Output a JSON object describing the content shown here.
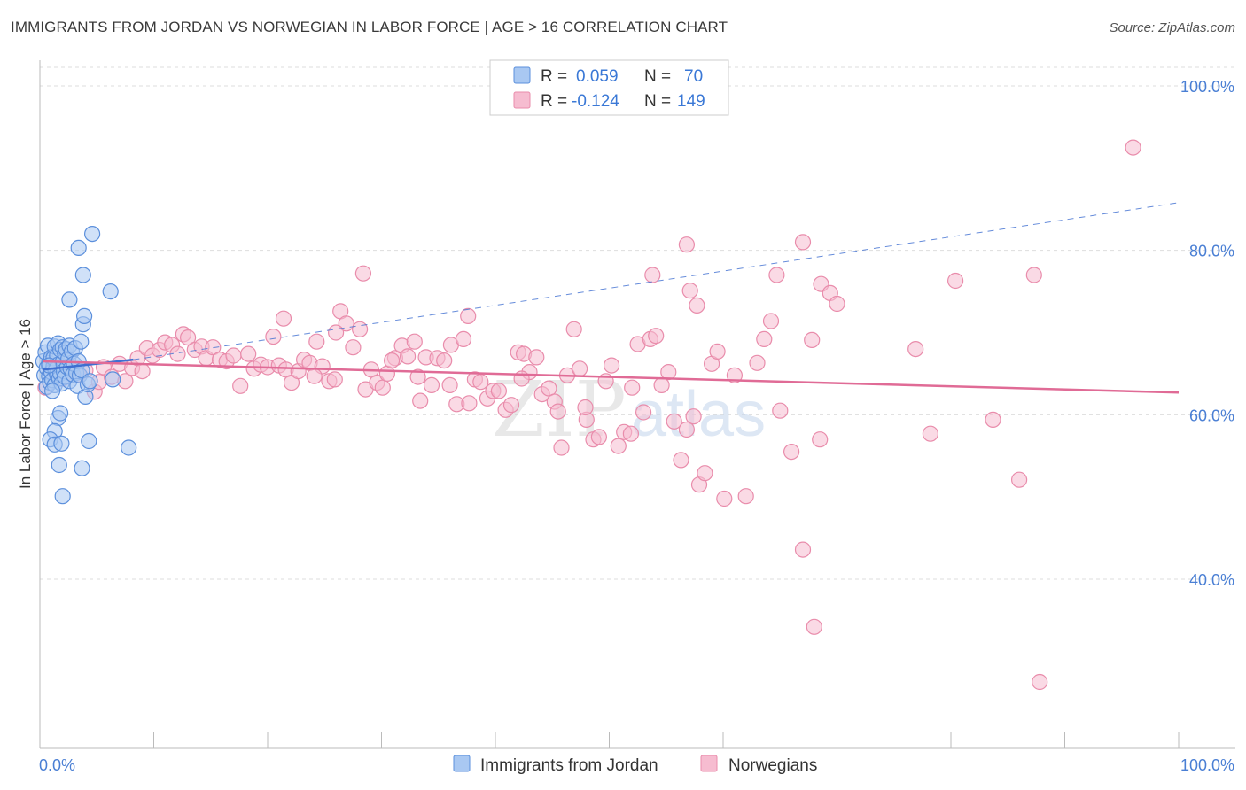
{
  "title": "IMMIGRANTS FROM JORDAN VS NORWEGIAN IN LABOR FORCE | AGE > 16 CORRELATION CHART",
  "source": "Source: ZipAtlas.com",
  "watermark": {
    "zip": "ZIP",
    "atlas": "atlas"
  },
  "colors": {
    "blue_fill": "#a9c8f2",
    "blue_stroke": "#5b8fdc",
    "blue_line": "#3f6fd1",
    "pink_fill": "#f6bcd0",
    "pink_stroke": "#e98cab",
    "pink_line": "#e06b96",
    "grid": "#dddddd",
    "tick_text": "#4a7fd4"
  },
  "legend": {
    "rows": [
      {
        "r_label": "R =",
        "r_value": "0.059",
        "n_label": "N =",
        "n_value": "70",
        "series": "blue"
      },
      {
        "r_label": "R =",
        "r_value": "-0.124",
        "n_label": "N =",
        "n_value": "149",
        "series": "pink"
      }
    ]
  },
  "bottom_legend": [
    "Immigrants from Jordan",
    "Norwegians"
  ],
  "chart_data": {
    "type": "scatter",
    "title": "IMMIGRANTS FROM JORDAN VS NORWEGIAN IN LABOR FORCE | AGE > 16 CORRELATION CHART",
    "xlabel": "",
    "ylabel": "In Labor Force | Age > 16",
    "xlim": [
      0,
      100
    ],
    "ylim": [
      20,
      103
    ],
    "x_tick_labels": [
      {
        "value": 0,
        "label": "0.0%"
      },
      {
        "value": 100,
        "label": "100.0%"
      }
    ],
    "x_minor_ticks": [
      10,
      20,
      30,
      40,
      50,
      60,
      70,
      80,
      90
    ],
    "y_ticks": [
      {
        "value": 40,
        "label": "40.0%"
      },
      {
        "value": 60,
        "label": "60.0%"
      },
      {
        "value": 80,
        "label": "80.0%"
      },
      {
        "value": 100,
        "label": "100.0%"
      }
    ],
    "grid": true,
    "legend_position": "top-center",
    "series": [
      {
        "name": "Immigrants from Jordan",
        "color": "blue",
        "R": 0.059,
        "N": 70,
        "trend_solid": [
          [
            0.3,
            65.5
          ],
          [
            8.2,
            66.7
          ]
        ],
        "trend_dashed": [
          [
            8.2,
            66.7
          ],
          [
            100,
            85.8
          ]
        ],
        "points": [
          [
            0.3,
            66.5
          ],
          [
            0.4,
            64.8
          ],
          [
            0.5,
            67.6
          ],
          [
            0.6,
            65.7
          ],
          [
            0.6,
            63.4
          ],
          [
            0.7,
            68.4
          ],
          [
            0.8,
            64.7
          ],
          [
            0.8,
            66.3
          ],
          [
            0.9,
            63.9
          ],
          [
            1.0,
            65.2
          ],
          [
            1.0,
            67.0
          ],
          [
            1.1,
            64.2
          ],
          [
            1.2,
            65.9
          ],
          [
            1.2,
            66.9
          ],
          [
            1.3,
            68.3
          ],
          [
            1.3,
            63.6
          ],
          [
            1.4,
            65.5
          ],
          [
            1.5,
            64.9
          ],
          [
            1.5,
            67.2
          ],
          [
            1.6,
            66.1
          ],
          [
            1.6,
            68.7
          ],
          [
            1.7,
            64.4
          ],
          [
            1.8,
            65.0
          ],
          [
            1.8,
            67.9
          ],
          [
            1.9,
            63.8
          ],
          [
            2.0,
            66.4
          ],
          [
            2.0,
            68.2
          ],
          [
            2.1,
            65.3
          ],
          [
            2.2,
            64.6
          ],
          [
            2.2,
            67.5
          ],
          [
            2.3,
            68.0
          ],
          [
            2.4,
            65.8
          ],
          [
            2.5,
            66.8
          ],
          [
            2.6,
            64.1
          ],
          [
            2.6,
            68.4
          ],
          [
            2.7,
            65.6
          ],
          [
            2.8,
            67.7
          ],
          [
            2.9,
            64.9
          ],
          [
            3.0,
            66.2
          ],
          [
            3.1,
            68.1
          ],
          [
            3.2,
            65.1
          ],
          [
            3.3,
            63.5
          ],
          [
            3.4,
            66.5
          ],
          [
            3.5,
            64.8
          ],
          [
            3.6,
            68.9
          ],
          [
            3.7,
            65.4
          ],
          [
            3.8,
            71.0
          ],
          [
            3.9,
            72.0
          ],
          [
            4.0,
            62.2
          ],
          [
            4.2,
            63.7
          ],
          [
            4.4,
            64.1
          ],
          [
            2.6,
            74.0
          ],
          [
            3.4,
            80.3
          ],
          [
            3.8,
            77.0
          ],
          [
            4.6,
            82.0
          ],
          [
            6.2,
            75.0
          ],
          [
            1.6,
            59.6
          ],
          [
            1.8,
            60.2
          ],
          [
            1.3,
            58.0
          ],
          [
            0.9,
            57.0
          ],
          [
            1.3,
            56.4
          ],
          [
            1.9,
            56.5
          ],
          [
            4.3,
            56.8
          ],
          [
            7.8,
            56.0
          ],
          [
            1.7,
            53.9
          ],
          [
            3.7,
            53.5
          ],
          [
            2.0,
            50.1
          ],
          [
            6.4,
            64.3
          ],
          [
            1.1,
            62.9
          ],
          [
            0.8,
            66.0
          ]
        ]
      },
      {
        "name": "Norwegians",
        "color": "pink",
        "R": -0.124,
        "N": 149,
        "trend_solid": [
          [
            0.3,
            66.5
          ],
          [
            100,
            62.7
          ]
        ],
        "points": [
          [
            0.5,
            63.3
          ],
          [
            1.5,
            65.1
          ],
          [
            2.0,
            64.4
          ],
          [
            2.8,
            65.6
          ],
          [
            3.4,
            64.9
          ],
          [
            4.0,
            65.4
          ],
          [
            4.8,
            62.8
          ],
          [
            5.2,
            64.0
          ],
          [
            5.6,
            65.8
          ],
          [
            6.3,
            64.6
          ],
          [
            7.0,
            66.2
          ],
          [
            7.5,
            64.1
          ],
          [
            8.1,
            65.7
          ],
          [
            8.6,
            66.9
          ],
          [
            9.0,
            65.3
          ],
          [
            9.4,
            68.1
          ],
          [
            9.9,
            67.2
          ],
          [
            10.5,
            67.9
          ],
          [
            11.0,
            68.8
          ],
          [
            11.6,
            68.5
          ],
          [
            12.1,
            67.4
          ],
          [
            12.6,
            69.8
          ],
          [
            13.0,
            69.4
          ],
          [
            13.6,
            67.9
          ],
          [
            14.2,
            68.3
          ],
          [
            14.6,
            66.9
          ],
          [
            15.2,
            68.2
          ],
          [
            15.8,
            66.7
          ],
          [
            16.4,
            66.5
          ],
          [
            17.0,
            67.2
          ],
          [
            17.6,
            63.5
          ],
          [
            18.3,
            67.4
          ],
          [
            18.8,
            65.6
          ],
          [
            19.4,
            66.1
          ],
          [
            20.0,
            65.8
          ],
          [
            20.5,
            69.5
          ],
          [
            21.0,
            66.0
          ],
          [
            21.6,
            65.5
          ],
          [
            22.1,
            63.9
          ],
          [
            22.7,
            65.3
          ],
          [
            23.2,
            66.7
          ],
          [
            23.7,
            66.3
          ],
          [
            24.3,
            68.9
          ],
          [
            24.8,
            65.9
          ],
          [
            25.4,
            64.1
          ],
          [
            25.9,
            64.3
          ],
          [
            26.4,
            72.6
          ],
          [
            26.9,
            71.1
          ],
          [
            27.5,
            68.2
          ],
          [
            28.1,
            70.4
          ],
          [
            28.6,
            63.1
          ],
          [
            29.1,
            65.5
          ],
          [
            29.6,
            63.9
          ],
          [
            30.1,
            63.3
          ],
          [
            30.5,
            65.0
          ],
          [
            31.2,
            66.9
          ],
          [
            31.8,
            68.4
          ],
          [
            32.3,
            67.1
          ],
          [
            32.9,
            68.9
          ],
          [
            33.4,
            61.7
          ],
          [
            33.9,
            67.0
          ],
          [
            34.4,
            63.6
          ],
          [
            34.9,
            66.9
          ],
          [
            35.5,
            66.6
          ],
          [
            36.1,
            68.5
          ],
          [
            36.6,
            61.3
          ],
          [
            37.2,
            69.2
          ],
          [
            37.7,
            61.4
          ],
          [
            38.2,
            64.3
          ],
          [
            38.7,
            64.0
          ],
          [
            39.3,
            62.0
          ],
          [
            39.8,
            62.9
          ],
          [
            40.3,
            62.9
          ],
          [
            40.9,
            60.6
          ],
          [
            41.4,
            61.2
          ],
          [
            42.0,
            67.6
          ],
          [
            42.5,
            67.4
          ],
          [
            43.0,
            65.2
          ],
          [
            43.6,
            67.0
          ],
          [
            44.1,
            62.5
          ],
          [
            44.7,
            63.2
          ],
          [
            45.2,
            61.6
          ],
          [
            45.8,
            56.0
          ],
          [
            46.3,
            64.8
          ],
          [
            46.9,
            70.4
          ],
          [
            47.4,
            65.6
          ],
          [
            48.0,
            59.4
          ],
          [
            48.6,
            57.0
          ],
          [
            49.1,
            57.3
          ],
          [
            49.7,
            64.1
          ],
          [
            50.2,
            66.0
          ],
          [
            50.8,
            56.2
          ],
          [
            51.3,
            57.9
          ],
          [
            51.9,
            57.7
          ],
          [
            52.5,
            68.6
          ],
          [
            53.0,
            60.3
          ],
          [
            53.6,
            69.2
          ],
          [
            54.1,
            69.6
          ],
          [
            54.6,
            63.6
          ],
          [
            55.2,
            65.2
          ],
          [
            55.7,
            59.2
          ],
          [
            56.3,
            54.5
          ],
          [
            56.8,
            58.2
          ],
          [
            57.4,
            59.8
          ],
          [
            57.9,
            51.5
          ],
          [
            58.4,
            52.9
          ],
          [
            59.0,
            66.2
          ],
          [
            59.5,
            67.7
          ],
          [
            60.1,
            49.8
          ],
          [
            61.0,
            64.8
          ],
          [
            62.0,
            50.1
          ],
          [
            63.0,
            66.3
          ],
          [
            63.6,
            69.2
          ],
          [
            64.2,
            71.4
          ],
          [
            65.0,
            60.5
          ],
          [
            66.0,
            55.5
          ],
          [
            67.0,
            43.6
          ],
          [
            67.8,
            69.1
          ],
          [
            68.6,
            75.9
          ],
          [
            69.4,
            74.8
          ],
          [
            70.0,
            73.5
          ],
          [
            76.9,
            68.0
          ],
          [
            78.2,
            57.7
          ],
          [
            80.4,
            76.3
          ],
          [
            83.7,
            59.4
          ],
          [
            86.0,
            52.1
          ],
          [
            87.3,
            77.0
          ],
          [
            96.0,
            92.5
          ],
          [
            87.8,
            27.5
          ],
          [
            68.0,
            34.2
          ],
          [
            56.8,
            80.7
          ],
          [
            67.0,
            81.0
          ],
          [
            64.7,
            77.0
          ],
          [
            53.8,
            77.0
          ],
          [
            57.1,
            75.1
          ],
          [
            57.7,
            73.3
          ],
          [
            28.4,
            77.2
          ],
          [
            26.0,
            70.0
          ],
          [
            37.6,
            72.0
          ],
          [
            68.5,
            57.0
          ],
          [
            45.5,
            60.4
          ],
          [
            42.3,
            64.4
          ],
          [
            21.4,
            71.7
          ],
          [
            24.1,
            64.7
          ],
          [
            30.9,
            66.6
          ],
          [
            33.2,
            64.6
          ],
          [
            36.0,
            63.6
          ],
          [
            47.9,
            60.9
          ],
          [
            52.0,
            63.3
          ]
        ]
      }
    ]
  }
}
